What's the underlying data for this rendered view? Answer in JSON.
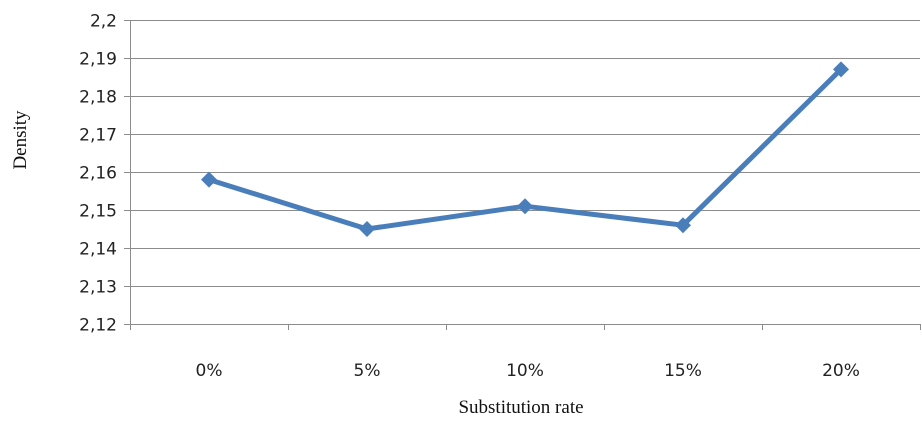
{
  "chart_data": {
    "type": "line",
    "title": "",
    "xlabel": "Substitution rate",
    "ylabel": "Density",
    "categories": [
      "0%",
      "5%",
      "10%",
      "15%",
      "20%"
    ],
    "series": [
      {
        "values": [
          2.158,
          2.145,
          2.151,
          2.146,
          2.187
        ],
        "color": "#4a7ebb",
        "marker": "diamond"
      }
    ],
    "ylim": [
      2.12,
      2.2
    ],
    "yticks": [
      2.12,
      2.13,
      2.14,
      2.15,
      2.16,
      2.17,
      2.18,
      2.19,
      2.2
    ],
    "ytick_labels": [
      "2,12",
      "2,13",
      "2,14",
      "2,15",
      "2,16",
      "2,17",
      "2,18",
      "2,19",
      "2,2"
    ],
    "grid": true,
    "legend": "none",
    "colors": {
      "gridline": "#8c8c8c",
      "axis": "#8c8c8c",
      "line": "#4a7ebb"
    }
  }
}
